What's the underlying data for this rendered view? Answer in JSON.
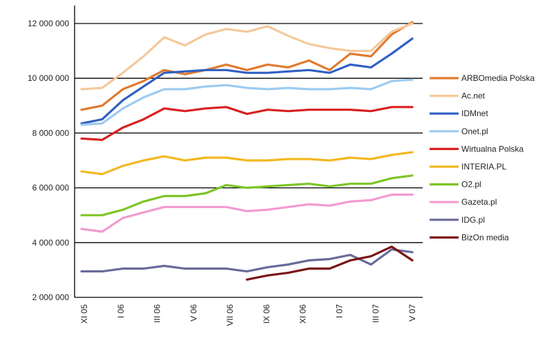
{
  "chart_data": {
    "type": "line",
    "title": "",
    "xlabel": "",
    "ylabel": "",
    "ylim": [
      2000000,
      12000000
    ],
    "y_ticks": [
      {
        "value": 12000000,
        "label": "12 000 000"
      },
      {
        "value": 10000000,
        "label": "10 000 000"
      },
      {
        "value": 8000000,
        "label": "8 000 000"
      },
      {
        "value": 6000000,
        "label": "6 000 000"
      },
      {
        "value": 4000000,
        "label": "4 000 000"
      },
      {
        "value": 2000000,
        "label": "2 000 000"
      }
    ],
    "x_tick_labels": [
      "XI 05",
      "I 06",
      "III 06",
      "V 06",
      "VII 06",
      "IX 06",
      "XI 06",
      "I 07",
      "III 07",
      "V 07"
    ],
    "grid": "horizontal",
    "legend_position": "right",
    "series": [
      {
        "name": "ARBOmedia Polska",
        "color": "#e07a2e",
        "values": [
          8850000,
          9000000,
          9600000,
          9900000,
          10300000,
          10150000,
          10300000,
          10500000,
          10300000,
          10500000,
          10400000,
          10650000,
          10300000,
          10900000,
          10800000,
          11600000,
          12050000
        ]
      },
      {
        "name": "Ac.net",
        "color": "#f5c89a",
        "values": [
          9600000,
          9650000,
          10200000,
          10800000,
          11500000,
          11200000,
          11600000,
          11800000,
          11700000,
          11900000,
          11550000,
          11250000,
          11100000,
          11000000,
          11000000,
          11700000,
          12000000
        ]
      },
      {
        "name": "IDMnet",
        "color": "#2f5fc4",
        "values": [
          8350000,
          8500000,
          9200000,
          9700000,
          10200000,
          10250000,
          10300000,
          10300000,
          10200000,
          10200000,
          10250000,
          10300000,
          10200000,
          10500000,
          10400000,
          10900000,
          11450000
        ]
      },
      {
        "name": "Onet.pl",
        "color": "#9ccbf0",
        "values": [
          8300000,
          8350000,
          8900000,
          9300000,
          9600000,
          9600000,
          9700000,
          9750000,
          9650000,
          9600000,
          9650000,
          9600000,
          9600000,
          9650000,
          9600000,
          9900000,
          9950000
        ]
      },
      {
        "name": "Wirtualna Polska",
        "color": "#d92020",
        "values": [
          7800000,
          7750000,
          8200000,
          8500000,
          8900000,
          8800000,
          8900000,
          8950000,
          8700000,
          8850000,
          8800000,
          8850000,
          8850000,
          8850000,
          8800000,
          8950000,
          8950000
        ]
      },
      {
        "name": "INTERIA.PL",
        "color": "#f2b820",
        "values": [
          6600000,
          6500000,
          6800000,
          7000000,
          7150000,
          7000000,
          7100000,
          7100000,
          7000000,
          7000000,
          7050000,
          7050000,
          7000000,
          7100000,
          7050000,
          7200000,
          7300000
        ]
      },
      {
        "name": "O2.pl",
        "color": "#7dc526",
        "values": [
          5000000,
          5000000,
          5200000,
          5500000,
          5700000,
          5700000,
          5800000,
          6100000,
          6000000,
          6050000,
          6100000,
          6150000,
          6050000,
          6150000,
          6150000,
          6350000,
          6450000
        ]
      },
      {
        "name": "Gazeta.pl",
        "color": "#f39ad0",
        "values": [
          4500000,
          4400000,
          4900000,
          5100000,
          5300000,
          5300000,
          5300000,
          5300000,
          5150000,
          5200000,
          5300000,
          5400000,
          5350000,
          5500000,
          5550000,
          5750000,
          5750000
        ]
      },
      {
        "name": "IDG.pl",
        "color": "#6a6a9a",
        "values": [
          2950000,
          2950000,
          3050000,
          3050000,
          3150000,
          3050000,
          3050000,
          3050000,
          2950000,
          3100000,
          3200000,
          3350000,
          3400000,
          3550000,
          3200000,
          3750000,
          3650000
        ]
      },
      {
        "name": "BizOn media",
        "color": "#7a1414",
        "values": [
          null,
          null,
          null,
          null,
          null,
          null,
          null,
          null,
          2650000,
          2800000,
          2900000,
          3050000,
          3050000,
          3350000,
          3500000,
          3850000,
          3350000
        ]
      }
    ]
  }
}
